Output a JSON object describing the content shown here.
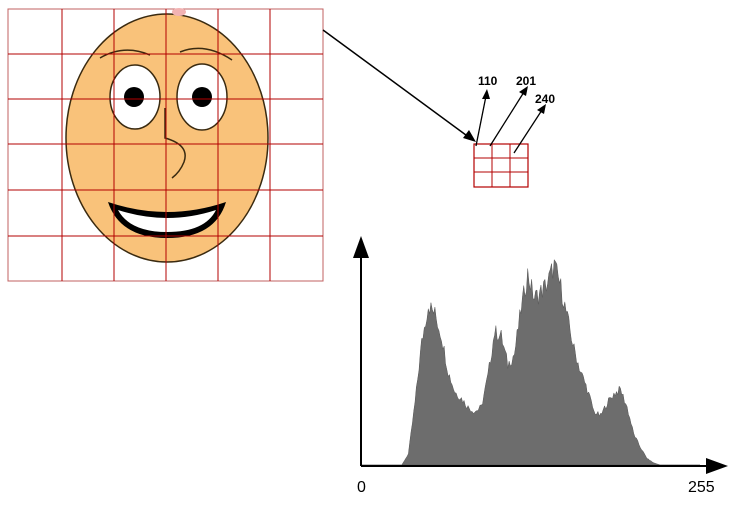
{
  "image": {
    "subject": "cartoon-face",
    "grid_lines": "#b30000",
    "face_fill": "#f9c27a",
    "face_outline": "#3a2a10"
  },
  "zoom": {
    "pixel_values": [
      "110",
      "201",
      "240"
    ],
    "grid_rows": 3,
    "grid_cols": 3,
    "grid_color": "#b30000"
  },
  "histogram": {
    "x_min_label": "0",
    "x_max_label": "255",
    "fill_color": "#6d6d6d"
  },
  "chart_data": {
    "type": "area",
    "x_range": [
      0,
      255
    ],
    "x_ticks": [
      "0",
      "255"
    ],
    "grid": false,
    "series": [
      {
        "x": [
          0,
          30,
          35,
          40,
          45,
          50,
          55,
          60,
          65,
          70,
          75,
          80,
          85,
          90,
          95,
          100,
          105,
          110,
          115,
          120,
          125,
          130,
          135,
          140,
          145,
          150,
          155,
          160,
          165,
          170,
          175,
          180,
          185,
          190,
          195,
          200,
          205,
          210,
          215,
          220,
          225,
          230,
          235,
          255
        ],
        "y": [
          0,
          0,
          5,
          28,
          55,
          72,
          68,
          58,
          42,
          33,
          30,
          26,
          24,
          26,
          40,
          60,
          58,
          45,
          50,
          70,
          86,
          75,
          78,
          82,
          90,
          80,
          66,
          52,
          42,
          34,
          24,
          22,
          28,
          32,
          34,
          26,
          14,
          8,
          3,
          1,
          0,
          0,
          0,
          0
        ]
      }
    ]
  }
}
